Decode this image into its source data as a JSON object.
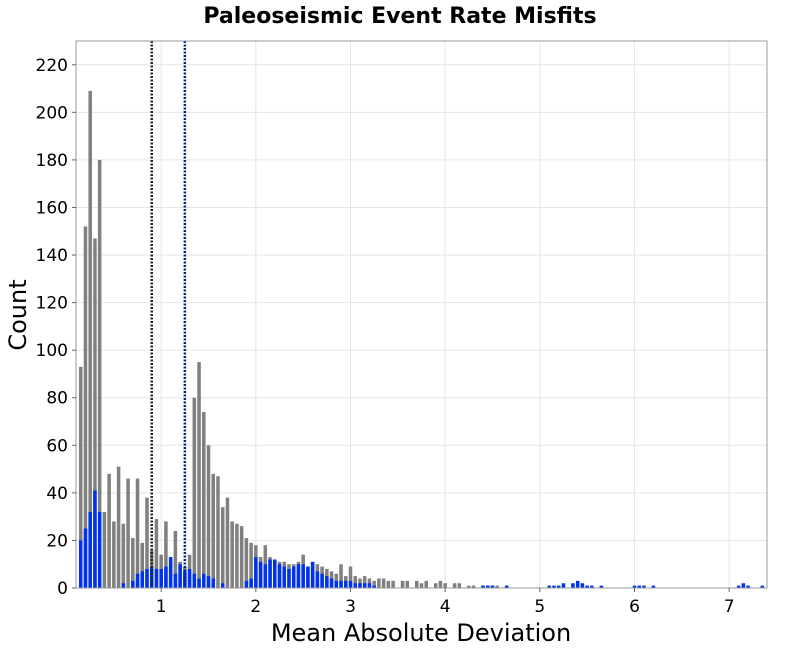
{
  "chart_data": {
    "type": "bar",
    "title": "Paleoseismic Event Rate Misfits",
    "xlabel": "Mean Absolute Deviation",
    "ylabel": "Count",
    "xlim": [
      0.1,
      7.4
    ],
    "ylim": [
      0,
      230
    ],
    "xticks": [
      1,
      2,
      3,
      4,
      5,
      6,
      7
    ],
    "yticks": [
      0,
      20,
      40,
      60,
      80,
      100,
      120,
      140,
      160,
      180,
      200,
      220
    ],
    "grid": true,
    "bin_width": 0.05,
    "colors": {
      "all": "#808080",
      "highlight": "#0033ee",
      "vline_all": "#222222",
      "vline_highlight": "#001f99"
    },
    "vertical_lines": [
      {
        "x": 0.9,
        "color": "#222222"
      },
      {
        "x": 1.25,
        "color": "#001f99"
      }
    ],
    "series": [
      {
        "color": "#808080",
        "points": [
          [
            0.15,
            93
          ],
          [
            0.2,
            152
          ],
          [
            0.25,
            209
          ],
          [
            0.3,
            147
          ],
          [
            0.35,
            180
          ],
          [
            0.4,
            32
          ],
          [
            0.45,
            48
          ],
          [
            0.5,
            28
          ],
          [
            0.55,
            51
          ],
          [
            0.6,
            27
          ],
          [
            0.65,
            46
          ],
          [
            0.7,
            21
          ],
          [
            0.75,
            46
          ],
          [
            0.8,
            19
          ],
          [
            0.85,
            38
          ],
          [
            0.9,
            16
          ],
          [
            0.95,
            29
          ],
          [
            1.0,
            14
          ],
          [
            1.05,
            28
          ],
          [
            1.1,
            10
          ],
          [
            1.15,
            24
          ],
          [
            1.2,
            11
          ],
          [
            1.25,
            9
          ],
          [
            1.3,
            14
          ],
          [
            1.35,
            80
          ],
          [
            1.4,
            95
          ],
          [
            1.45,
            74
          ],
          [
            1.5,
            60
          ],
          [
            1.55,
            48
          ],
          [
            1.6,
            47
          ],
          [
            1.65,
            34
          ],
          [
            1.7,
            38
          ],
          [
            1.75,
            28
          ],
          [
            1.8,
            27
          ],
          [
            1.85,
            26
          ],
          [
            1.9,
            21
          ],
          [
            1.95,
            19
          ],
          [
            2.0,
            18
          ],
          [
            2.05,
            13
          ],
          [
            2.1,
            18
          ],
          [
            2.15,
            13
          ],
          [
            2.2,
            11
          ],
          [
            2.25,
            11
          ],
          [
            2.3,
            11
          ],
          [
            2.35,
            10
          ],
          [
            2.4,
            10
          ],
          [
            2.45,
            11
          ],
          [
            2.5,
            14
          ],
          [
            2.55,
            9
          ],
          [
            2.6,
            11
          ],
          [
            2.65,
            10
          ],
          [
            2.7,
            9
          ],
          [
            2.75,
            8
          ],
          [
            2.8,
            7
          ],
          [
            2.85,
            6
          ],
          [
            2.9,
            10
          ],
          [
            2.95,
            5
          ],
          [
            3.0,
            9
          ],
          [
            3.05,
            5
          ],
          [
            3.1,
            4
          ],
          [
            3.15,
            5
          ],
          [
            3.2,
            4
          ],
          [
            3.25,
            3
          ],
          [
            3.3,
            4
          ],
          [
            3.35,
            4
          ],
          [
            3.4,
            3
          ],
          [
            3.45,
            3
          ],
          [
            3.55,
            3
          ],
          [
            3.6,
            3
          ],
          [
            3.7,
            3
          ],
          [
            3.75,
            2
          ],
          [
            3.8,
            3
          ],
          [
            3.9,
            2
          ],
          [
            3.95,
            3
          ],
          [
            4.0,
            2
          ],
          [
            4.1,
            2
          ],
          [
            4.15,
            2
          ],
          [
            4.25,
            1
          ],
          [
            4.3,
            1
          ],
          [
            4.4,
            1
          ],
          [
            4.45,
            1
          ],
          [
            4.5,
            1
          ],
          [
            4.55,
            1
          ],
          [
            4.65,
            1
          ]
        ]
      },
      {
        "color": "#0033ee",
        "points": [
          [
            0.15,
            20
          ],
          [
            0.2,
            25
          ],
          [
            0.25,
            32
          ],
          [
            0.3,
            41
          ],
          [
            0.35,
            32
          ],
          [
            0.6,
            2
          ],
          [
            0.7,
            3
          ],
          [
            0.75,
            6
          ],
          [
            0.8,
            7
          ],
          [
            0.85,
            8
          ],
          [
            0.9,
            9
          ],
          [
            0.95,
            8
          ],
          [
            1.0,
            8
          ],
          [
            1.05,
            9
          ],
          [
            1.1,
            13
          ],
          [
            1.15,
            6
          ],
          [
            1.2,
            10
          ],
          [
            1.25,
            7
          ],
          [
            1.3,
            8
          ],
          [
            1.35,
            6
          ],
          [
            1.4,
            4
          ],
          [
            1.45,
            6
          ],
          [
            1.5,
            5
          ],
          [
            1.55,
            4
          ],
          [
            1.65,
            2
          ],
          [
            1.9,
            3
          ],
          [
            1.95,
            4
          ],
          [
            2.0,
            13
          ],
          [
            2.05,
            11
          ],
          [
            2.1,
            10
          ],
          [
            2.15,
            12
          ],
          [
            2.2,
            12
          ],
          [
            2.25,
            10
          ],
          [
            2.3,
            9
          ],
          [
            2.35,
            8
          ],
          [
            2.4,
            9
          ],
          [
            2.45,
            10
          ],
          [
            2.5,
            10
          ],
          [
            2.55,
            9
          ],
          [
            2.6,
            11
          ],
          [
            2.65,
            7
          ],
          [
            2.7,
            6
          ],
          [
            2.75,
            5
          ],
          [
            2.8,
            4
          ],
          [
            2.85,
            3
          ],
          [
            2.9,
            3
          ],
          [
            2.95,
            3
          ],
          [
            3.0,
            3
          ],
          [
            3.05,
            2
          ],
          [
            3.1,
            2
          ],
          [
            3.15,
            2
          ],
          [
            3.2,
            2
          ],
          [
            3.25,
            1
          ],
          [
            4.4,
            1
          ],
          [
            4.45,
            1
          ],
          [
            4.5,
            1
          ],
          [
            4.65,
            1
          ],
          [
            5.1,
            1
          ],
          [
            5.15,
            1
          ],
          [
            5.2,
            1
          ],
          [
            5.25,
            2
          ],
          [
            5.35,
            2
          ],
          [
            5.4,
            3
          ],
          [
            5.45,
            2
          ],
          [
            5.5,
            1
          ],
          [
            5.55,
            1
          ],
          [
            5.65,
            1
          ],
          [
            6.0,
            1
          ],
          [
            6.05,
            1
          ],
          [
            6.1,
            1
          ],
          [
            6.2,
            1
          ],
          [
            7.1,
            1
          ],
          [
            7.15,
            2
          ],
          [
            7.2,
            1
          ],
          [
            7.35,
            1
          ]
        ]
      }
    ]
  }
}
